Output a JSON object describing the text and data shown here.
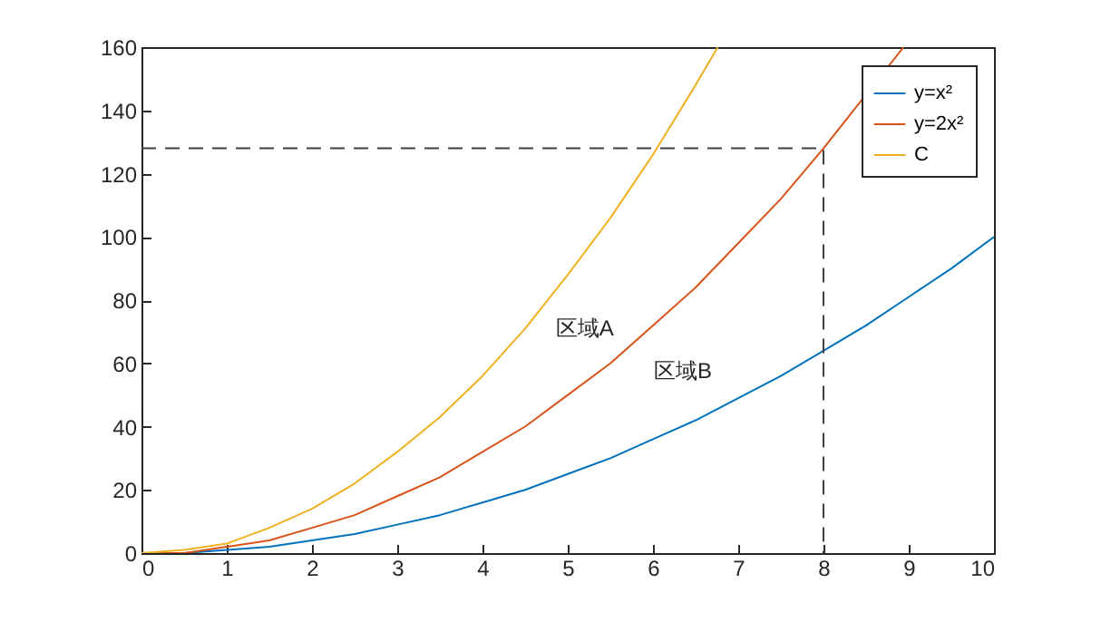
{
  "chart_data": {
    "type": "line",
    "xlim": [
      0,
      10
    ],
    "xticks": [
      0,
      1,
      2,
      3,
      4,
      5,
      6,
      7,
      8,
      9,
      10
    ],
    "ylim": [
      0,
      160
    ],
    "yticks": [
      0,
      20,
      40,
      60,
      80,
      100,
      120,
      140,
      160
    ],
    "grid": false,
    "legend": "top right",
    "line_style": "solid",
    "series": [
      {
        "name": "y=x²",
        "color": "#0072bd",
        "x": [
          0,
          0.5,
          1,
          1.5,
          2,
          2.5,
          3,
          3.5,
          4,
          4.5,
          5,
          5.5,
          6,
          6.5,
          7,
          7.5,
          8,
          8.5,
          9,
          9.5,
          10
        ],
        "values": [
          0,
          0,
          1,
          2,
          4,
          6,
          9,
          12,
          16,
          20,
          25,
          30,
          36,
          42,
          49,
          56,
          64,
          72,
          81,
          90,
          100
        ]
      },
      {
        "name": "y=2x²",
        "color": "#d95319",
        "x": [
          0,
          0.5,
          1,
          1.5,
          2,
          2.5,
          3,
          3.5,
          4,
          4.5,
          5,
          5.5,
          6,
          6.5,
          7,
          7.5,
          8,
          8.94
        ],
        "values": [
          0,
          0,
          2,
          4,
          8,
          12,
          18,
          24,
          32,
          40,
          50,
          60,
          72,
          84,
          98,
          112,
          128,
          160
        ]
      },
      {
        "name": "C",
        "color": "#edb120",
        "x": [
          0,
          0.5,
          1,
          1.5,
          2,
          2.5,
          3,
          3.5,
          4,
          4.5,
          5,
          5.5,
          6,
          6.5,
          6.76
        ],
        "values": [
          0,
          1,
          3,
          8,
          14,
          22,
          32,
          43,
          56,
          71,
          88,
          106,
          126,
          148,
          160
        ]
      },
      {
        "color": "#404040",
        "line_style": "dashed",
        "x": [
          0,
          8,
          8
        ],
        "values": [
          128,
          128,
          0
        ]
      }
    ],
    "annotations": [
      "区域A",
      "区域B"
    ]
  }
}
